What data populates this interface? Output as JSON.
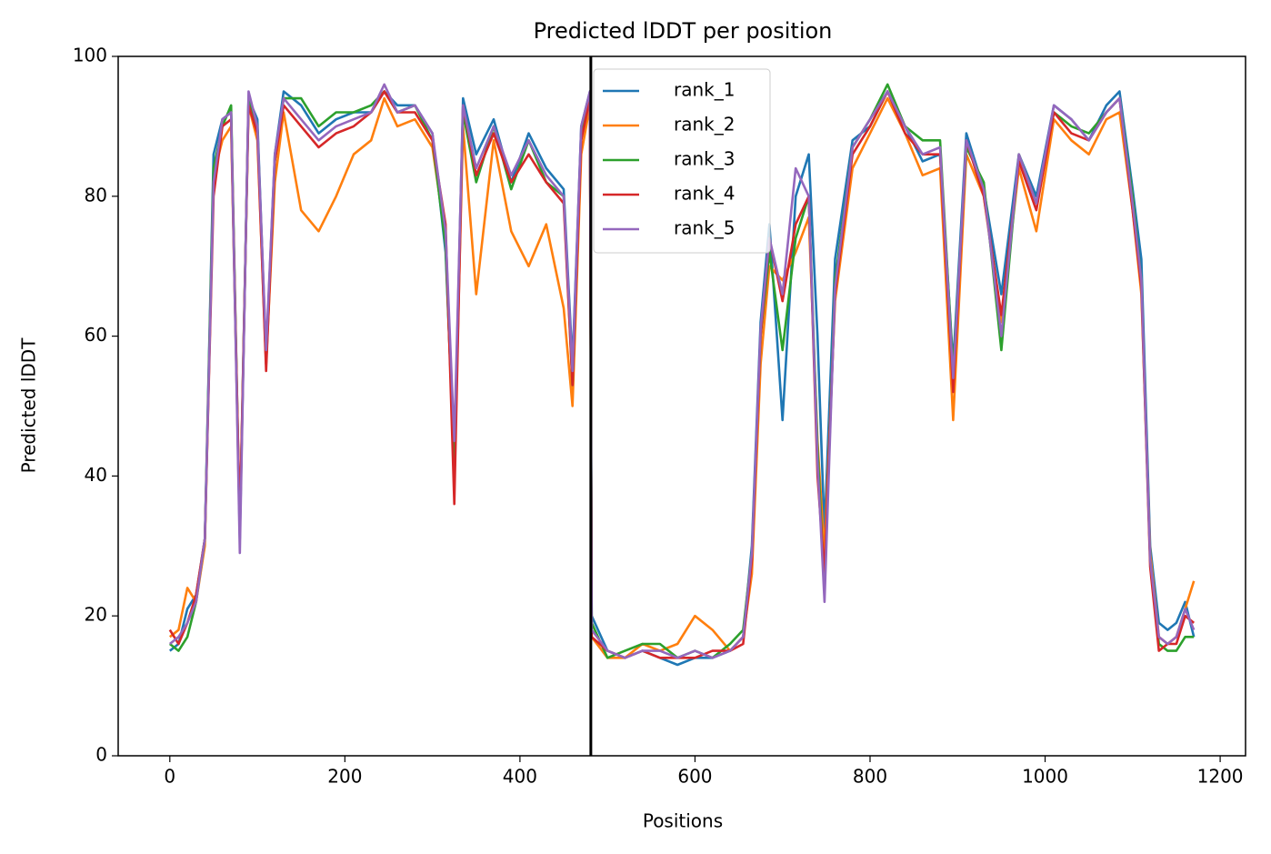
{
  "chart_data": {
    "type": "line",
    "title": "Predicted lDDT per position",
    "xlabel": "Positions",
    "ylabel": "Predicted lDDT",
    "xlim": [
      -59,
      1229
    ],
    "ylim": [
      0,
      100
    ],
    "xticks": [
      0,
      200,
      400,
      600,
      800,
      1000,
      1200
    ],
    "yticks": [
      0,
      20,
      40,
      60,
      80,
      100
    ],
    "vline": 481,
    "vline_color": "#000000",
    "legend": "upper center",
    "x": [
      0,
      10,
      20,
      30,
      40,
      50,
      60,
      70,
      80,
      90,
      100,
      110,
      120,
      130,
      150,
      170,
      190,
      210,
      230,
      245,
      260,
      280,
      300,
      315,
      325,
      335,
      350,
      370,
      390,
      410,
      430,
      450,
      460,
      470,
      480,
      482,
      500,
      520,
      540,
      560,
      580,
      600,
      620,
      640,
      655,
      665,
      675,
      685,
      700,
      715,
      730,
      740,
      748,
      760,
      780,
      800,
      820,
      840,
      860,
      880,
      895,
      910,
      930,
      950,
      970,
      990,
      1010,
      1030,
      1050,
      1070,
      1085,
      1100,
      1110,
      1120,
      1130,
      1140,
      1150,
      1160,
      1170
    ],
    "series": [
      {
        "name": "rank_1",
        "color": "#1f77b4",
        "values": [
          15,
          16,
          21,
          23,
          31,
          86,
          91,
          92,
          31,
          94,
          91,
          57,
          86,
          95,
          93,
          89,
          91,
          92,
          92,
          95,
          93,
          93,
          89,
          72,
          42,
          94,
          86,
          91,
          82,
          89,
          84,
          81,
          56,
          90,
          95,
          20,
          15,
          14,
          15,
          14,
          13,
          14,
          14,
          15,
          17,
          30,
          62,
          76,
          48,
          80,
          86,
          60,
          32,
          71,
          88,
          90,
          95,
          90,
          85,
          86,
          56,
          89,
          81,
          66,
          86,
          80,
          93,
          91,
          88,
          93,
          95,
          81,
          71,
          30,
          19,
          18,
          19,
          22,
          17
        ]
      },
      {
        "name": "rank_2",
        "color": "#ff7f0e",
        "values": [
          17,
          18,
          24,
          22,
          30,
          83,
          88,
          90,
          32,
          93,
          88,
          56,
          82,
          92,
          78,
          75,
          80,
          86,
          88,
          94,
          90,
          91,
          87,
          74,
          40,
          90,
          66,
          88,
          75,
          70,
          76,
          64,
          50,
          86,
          93,
          17,
          14,
          14,
          16,
          15,
          16,
          20,
          18,
          15,
          17,
          26,
          56,
          70,
          68,
          72,
          77,
          45,
          29,
          65,
          84,
          89,
          94,
          89,
          83,
          84,
          48,
          86,
          80,
          62,
          84,
          75,
          91,
          88,
          86,
          91,
          92,
          78,
          66,
          29,
          17,
          16,
          17,
          21,
          25
        ]
      },
      {
        "name": "rank_3",
        "color": "#2ca02c",
        "values": [
          16,
          15,
          17,
          22,
          31,
          84,
          90,
          93,
          32,
          94,
          90,
          56,
          85,
          94,
          94,
          90,
          92,
          92,
          93,
          95,
          92,
          93,
          88,
          73,
          41,
          92,
          82,
          90,
          81,
          88,
          82,
          80,
          53,
          89,
          94,
          19,
          14,
          15,
          16,
          16,
          14,
          15,
          14,
          16,
          18,
          29,
          60,
          72,
          58,
          74,
          80,
          44,
          24,
          68,
          87,
          91,
          96,
          90,
          88,
          88,
          55,
          87,
          82,
          58,
          86,
          79,
          92,
          90,
          89,
          92,
          94,
          80,
          68,
          28,
          16,
          15,
          15,
          17,
          17
        ]
      },
      {
        "name": "rank_4",
        "color": "#d62728",
        "values": [
          18,
          16,
          19,
          23,
          31,
          80,
          90,
          91,
          33,
          93,
          89,
          55,
          85,
          93,
          90,
          87,
          89,
          90,
          92,
          95,
          92,
          92,
          88,
          76,
          36,
          93,
          83,
          89,
          82,
          86,
          82,
          79,
          53,
          88,
          94,
          17,
          15,
          14,
          15,
          14,
          14,
          14,
          15,
          15,
          16,
          28,
          60,
          74,
          65,
          76,
          80,
          40,
          26,
          66,
          86,
          90,
          95,
          89,
          86,
          86,
          52,
          88,
          80,
          63,
          85,
          78,
          92,
          89,
          88,
          92,
          94,
          78,
          67,
          27,
          15,
          16,
          16,
          20,
          19
        ]
      },
      {
        "name": "rank_5",
        "color": "#9467bd",
        "values": [
          16,
          17,
          19,
          22,
          31,
          82,
          91,
          92,
          29,
          95,
          90,
          58,
          86,
          94,
          91,
          88,
          90,
          91,
          92,
          96,
          92,
          93,
          89,
          75,
          45,
          93,
          84,
          90,
          83,
          88,
          83,
          80,
          55,
          90,
          95,
          18,
          15,
          14,
          15,
          15,
          14,
          15,
          14,
          15,
          17,
          29,
          61,
          74,
          66,
          84,
          80,
          42,
          22,
          67,
          87,
          91,
          95,
          90,
          86,
          87,
          54,
          88,
          81,
          60,
          86,
          79,
          93,
          91,
          88,
          92,
          94,
          79,
          68,
          28,
          17,
          16,
          17,
          21,
          18
        ]
      }
    ]
  }
}
